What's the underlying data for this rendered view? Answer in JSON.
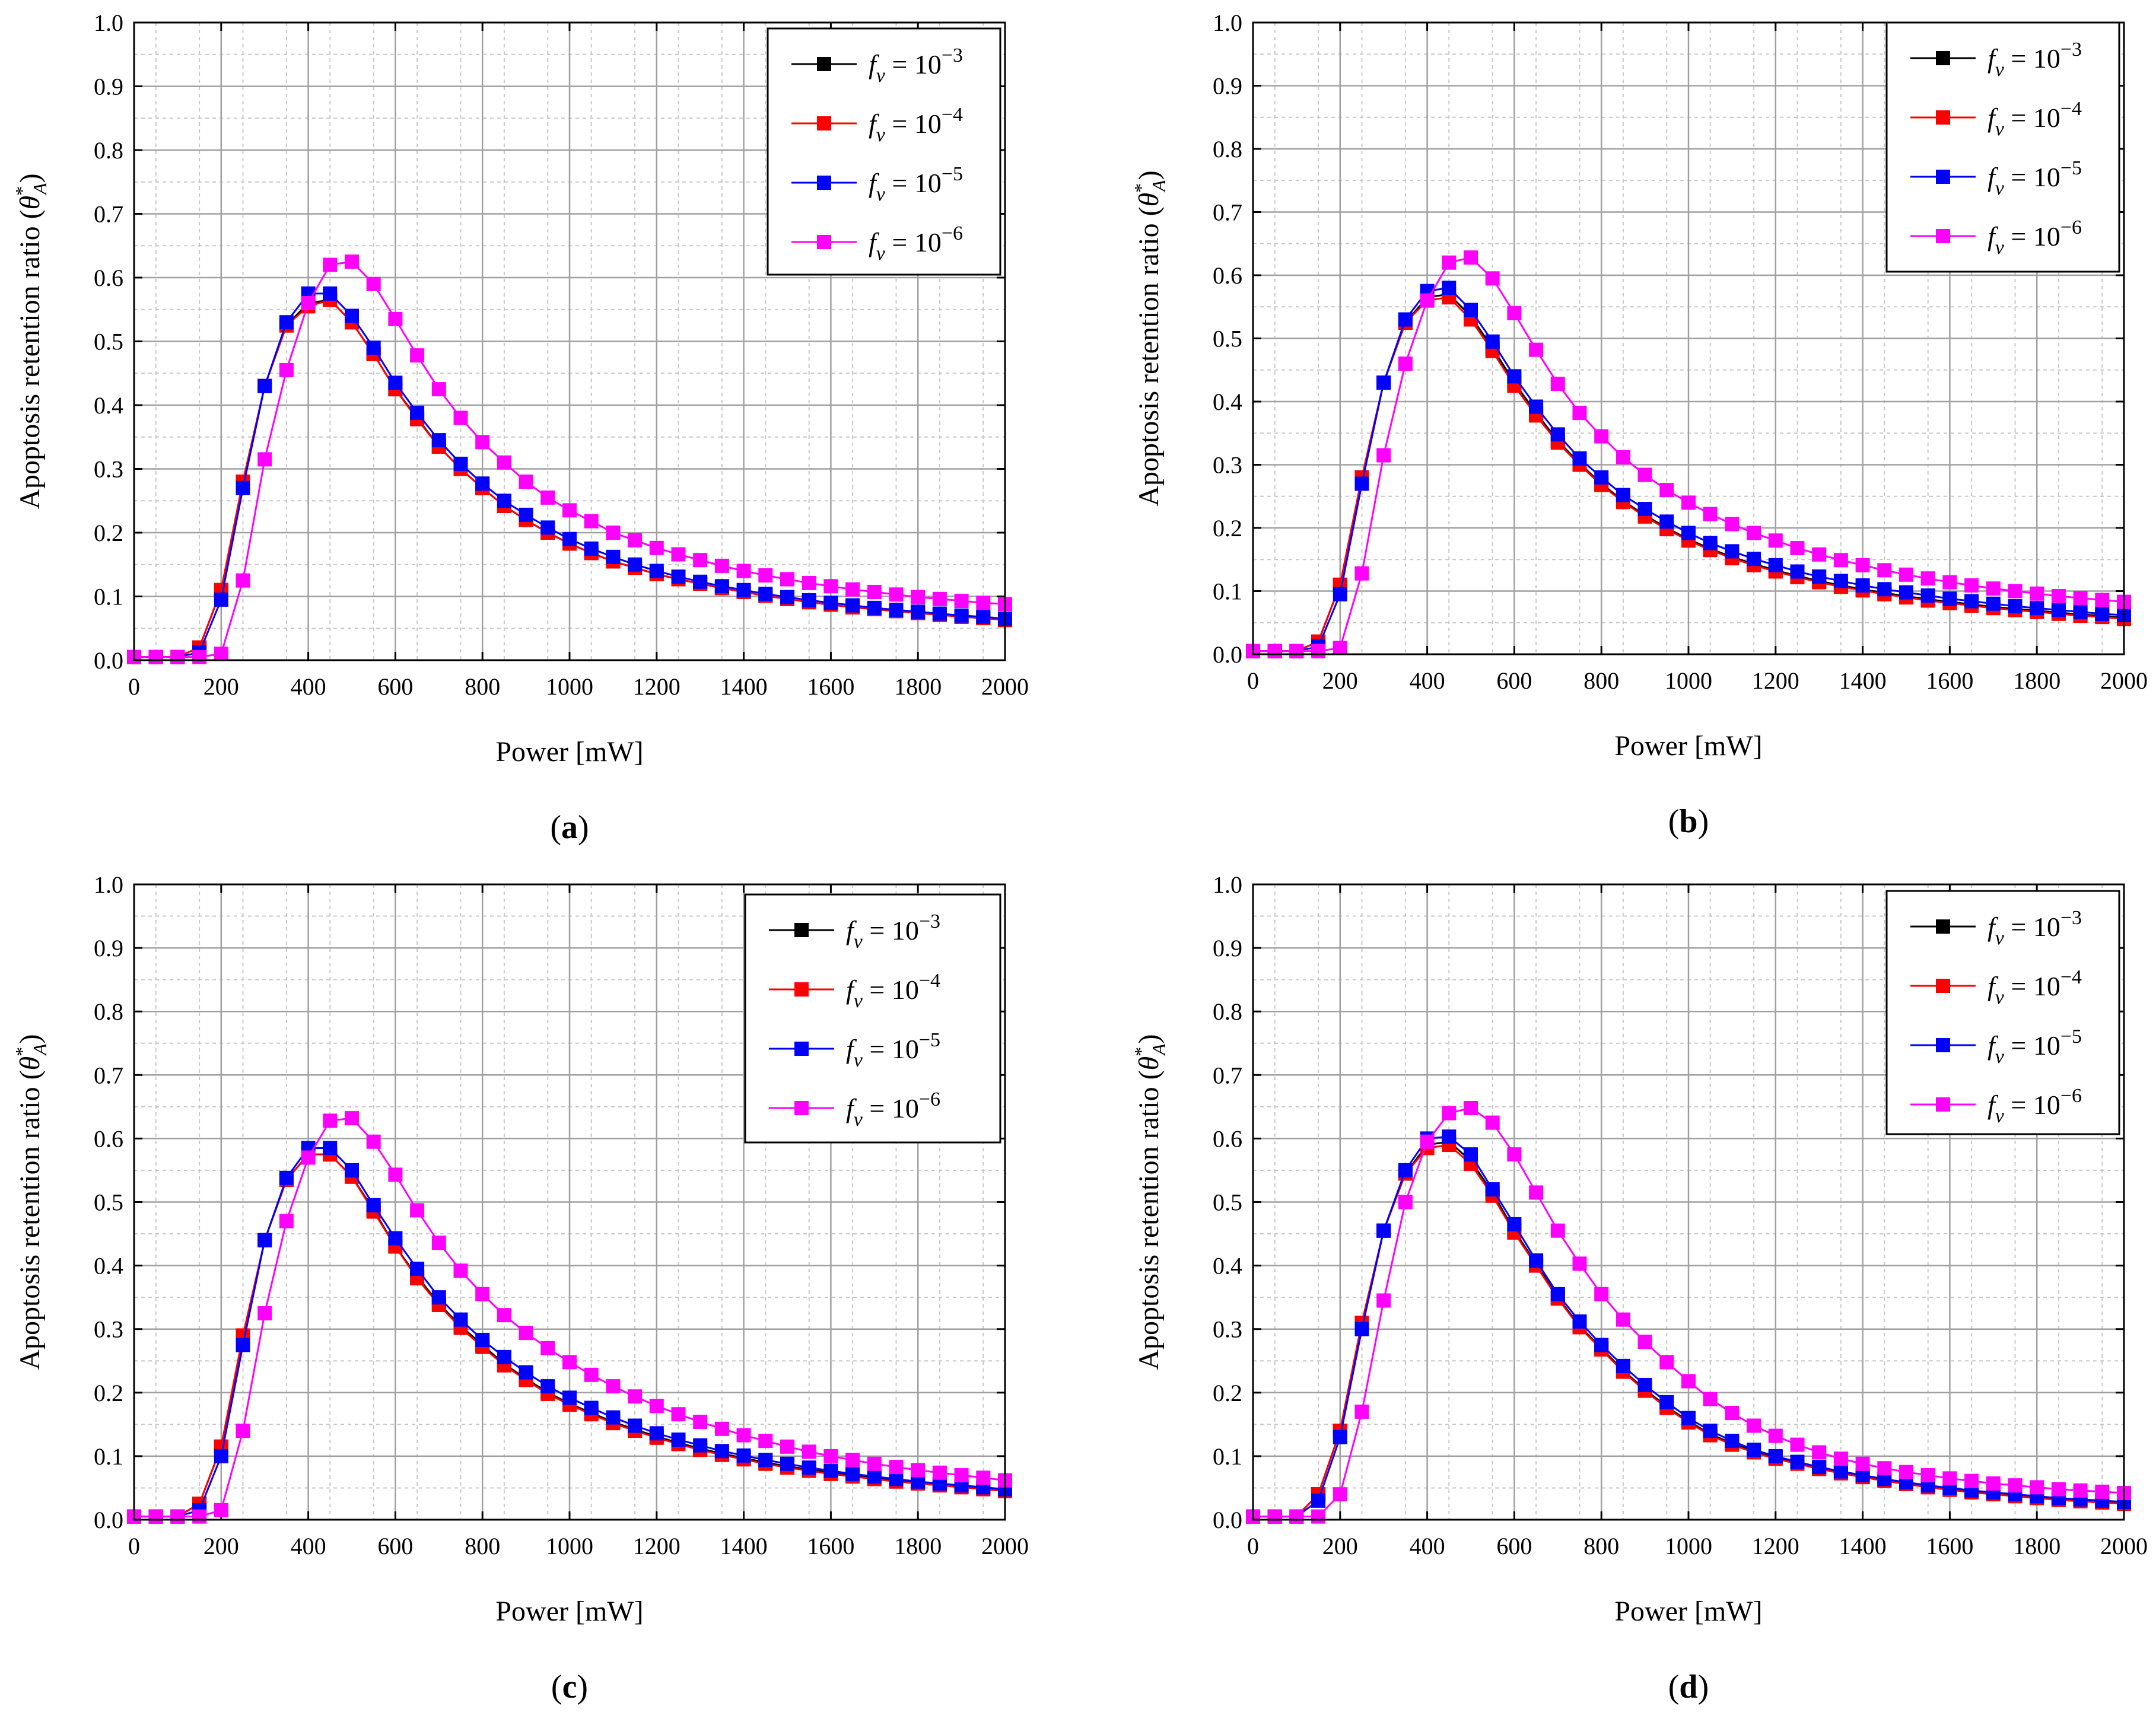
{
  "figure": {
    "colors": {
      "black": "#000000",
      "red": "#ff0000",
      "blue": "#0000ff",
      "magenta": "#ff00ff",
      "grid": "#a0a0a0",
      "minor_grid": "#c8c8c8"
    },
    "legend_labels": [
      {
        "prefix": "f",
        "sub": "v",
        "eq": " = 10",
        "exp": "−3"
      },
      {
        "prefix": "f",
        "sub": "v",
        "eq": " = 10",
        "exp": "−4"
      },
      {
        "prefix": "f",
        "sub": "v",
        "eq": " = 10",
        "exp": "−5"
      },
      {
        "prefix": "f",
        "sub": "v",
        "eq": " = 10",
        "exp": "−6"
      }
    ],
    "xlabel": "Power [mW]",
    "ylabel_main": "Apoptosis retention ratio (",
    "ylabel_symbol": "θ",
    "ylabel_sup": "*",
    "ylabel_sub": "A",
    "ylabel_close": ")"
  },
  "chart_data": [
    {
      "type": "line",
      "caption_letter": "a",
      "xlim": [
        0,
        2000
      ],
      "ylim": [
        0,
        1.0
      ],
      "xticks": [
        "0",
        "200",
        "400",
        "600",
        "800",
        "1000",
        "1200",
        "1400",
        "1600",
        "1800",
        "2000"
      ],
      "yticks": [
        "0.0",
        "0.1",
        "0.2",
        "0.3",
        "0.4",
        "0.5",
        "0.6",
        "0.7",
        "0.8",
        "0.9",
        "1.0"
      ],
      "x": [
        0,
        50,
        100,
        150,
        200,
        250,
        300,
        350,
        400,
        450,
        500,
        550,
        600,
        650,
        700,
        750,
        800,
        850,
        900,
        950,
        1000,
        1050,
        1100,
        1150,
        1200,
        1250,
        1300,
        1350,
        1400,
        1450,
        1500,
        1550,
        1600,
        1650,
        1700,
        1750,
        1800,
        1850,
        1900,
        1950,
        2000
      ],
      "series": [
        {
          "name": "fv = 10^-3",
          "color": "black",
          "values": [
            0.005,
            0.005,
            0.005,
            0.02,
            0.11,
            0.28,
            0.43,
            0.525,
            0.56,
            0.565,
            0.53,
            0.48,
            0.425,
            0.38,
            0.335,
            0.3,
            0.27,
            0.242,
            0.22,
            0.2,
            0.183,
            0.168,
            0.155,
            0.145,
            0.135,
            0.127,
            0.12,
            0.113,
            0.107,
            0.101,
            0.096,
            0.091,
            0.087,
            0.083,
            0.08,
            0.077,
            0.074,
            0.071,
            0.068,
            0.066,
            0.063
          ]
        },
        {
          "name": "fv = 10^-4",
          "color": "red",
          "values": [
            0.005,
            0.005,
            0.005,
            0.02,
            0.11,
            0.28,
            0.43,
            0.525,
            0.555,
            0.565,
            0.53,
            0.48,
            0.425,
            0.378,
            0.335,
            0.3,
            0.27,
            0.242,
            0.22,
            0.2,
            0.183,
            0.168,
            0.155,
            0.145,
            0.135,
            0.127,
            0.12,
            0.113,
            0.107,
            0.101,
            0.096,
            0.091,
            0.087,
            0.083,
            0.08,
            0.077,
            0.074,
            0.071,
            0.068,
            0.066,
            0.063
          ]
        },
        {
          "name": "fv = 10^-5",
          "color": "blue",
          "values": [
            0.005,
            0.005,
            0.005,
            0.012,
            0.095,
            0.27,
            0.43,
            0.53,
            0.575,
            0.575,
            0.54,
            0.49,
            0.435,
            0.388,
            0.345,
            0.308,
            0.277,
            0.25,
            0.228,
            0.208,
            0.19,
            0.175,
            0.162,
            0.15,
            0.14,
            0.131,
            0.123,
            0.116,
            0.11,
            0.104,
            0.099,
            0.094,
            0.09,
            0.086,
            0.082,
            0.079,
            0.076,
            0.073,
            0.07,
            0.068,
            0.065
          ]
        },
        {
          "name": "fv = 10^-6",
          "color": "magenta",
          "values": [
            0.005,
            0.005,
            0.005,
            0.005,
            0.01,
            0.125,
            0.315,
            0.455,
            0.56,
            0.62,
            0.625,
            0.59,
            0.535,
            0.478,
            0.425,
            0.38,
            0.342,
            0.31,
            0.28,
            0.255,
            0.235,
            0.218,
            0.2,
            0.188,
            0.176,
            0.166,
            0.157,
            0.148,
            0.14,
            0.133,
            0.127,
            0.121,
            0.116,
            0.111,
            0.107,
            0.103,
            0.099,
            0.096,
            0.093,
            0.09,
            0.088
          ]
        }
      ]
    },
    {
      "type": "line",
      "caption_letter": "b",
      "xlim": [
        0,
        2000
      ],
      "ylim": [
        0,
        1.0
      ],
      "xticks": [
        "0",
        "200",
        "400",
        "600",
        "800",
        "1000",
        "1200",
        "1400",
        "1600",
        "1800",
        "2000"
      ],
      "yticks": [
        "0.0",
        "0.1",
        "0.2",
        "0.3",
        "0.4",
        "0.5",
        "0.6",
        "0.7",
        "0.8",
        "0.9",
        "1.0"
      ],
      "x": [
        0,
        50,
        100,
        150,
        200,
        250,
        300,
        350,
        400,
        450,
        500,
        550,
        600,
        650,
        700,
        750,
        800,
        850,
        900,
        950,
        1000,
        1050,
        1100,
        1150,
        1200,
        1250,
        1300,
        1350,
        1400,
        1450,
        1500,
        1550,
        1600,
        1650,
        1700,
        1750,
        1800,
        1850,
        1900,
        1950,
        2000
      ],
      "series": [
        {
          "name": "fv = 10^-3",
          "color": "black",
          "values": [
            0.005,
            0.005,
            0.005,
            0.02,
            0.11,
            0.28,
            0.43,
            0.525,
            0.565,
            0.57,
            0.535,
            0.485,
            0.43,
            0.382,
            0.338,
            0.302,
            0.27,
            0.243,
            0.22,
            0.2,
            0.182,
            0.167,
            0.154,
            0.143,
            0.133,
            0.124,
            0.116,
            0.109,
            0.103,
            0.097,
            0.092,
            0.087,
            0.083,
            0.079,
            0.075,
            0.072,
            0.069,
            0.066,
            0.063,
            0.061,
            0.058
          ]
        },
        {
          "name": "fv = 10^-4",
          "color": "red",
          "values": [
            0.005,
            0.005,
            0.005,
            0.02,
            0.11,
            0.28,
            0.43,
            0.525,
            0.56,
            0.565,
            0.53,
            0.48,
            0.425,
            0.378,
            0.335,
            0.3,
            0.268,
            0.241,
            0.218,
            0.198,
            0.18,
            0.165,
            0.152,
            0.141,
            0.131,
            0.122,
            0.114,
            0.107,
            0.101,
            0.095,
            0.09,
            0.085,
            0.081,
            0.077,
            0.073,
            0.07,
            0.067,
            0.064,
            0.061,
            0.059,
            0.056
          ]
        },
        {
          "name": "fv = 10^-5",
          "color": "blue",
          "values": [
            0.005,
            0.005,
            0.005,
            0.012,
            0.095,
            0.27,
            0.43,
            0.53,
            0.575,
            0.58,
            0.545,
            0.495,
            0.44,
            0.392,
            0.348,
            0.31,
            0.28,
            0.252,
            0.23,
            0.21,
            0.192,
            0.176,
            0.163,
            0.151,
            0.141,
            0.131,
            0.123,
            0.116,
            0.109,
            0.103,
            0.098,
            0.093,
            0.088,
            0.084,
            0.08,
            0.076,
            0.073,
            0.07,
            0.067,
            0.064,
            0.062
          ]
        },
        {
          "name": "fv = 10^-6",
          "color": "magenta",
          "values": [
            0.005,
            0.005,
            0.005,
            0.005,
            0.01,
            0.128,
            0.315,
            0.46,
            0.56,
            0.62,
            0.628,
            0.595,
            0.54,
            0.482,
            0.428,
            0.382,
            0.345,
            0.312,
            0.284,
            0.26,
            0.24,
            0.222,
            0.206,
            0.192,
            0.18,
            0.168,
            0.158,
            0.149,
            0.141,
            0.133,
            0.126,
            0.12,
            0.114,
            0.109,
            0.104,
            0.1,
            0.096,
            0.092,
            0.089,
            0.086,
            0.083
          ]
        }
      ]
    },
    {
      "type": "line",
      "caption_letter": "c",
      "xlim": [
        0,
        2000
      ],
      "ylim": [
        0,
        1.0
      ],
      "xticks": [
        "0",
        "200",
        "400",
        "600",
        "800",
        "1000",
        "1200",
        "1400",
        "1600",
        "1800",
        "2000"
      ],
      "yticks": [
        "0.0",
        "0.1",
        "0.2",
        "0.3",
        "0.4",
        "0.5",
        "0.6",
        "0.7",
        "0.8",
        "0.9",
        "1.0"
      ],
      "x": [
        0,
        50,
        100,
        150,
        200,
        250,
        300,
        350,
        400,
        450,
        500,
        550,
        600,
        650,
        700,
        750,
        800,
        850,
        900,
        950,
        1000,
        1050,
        1100,
        1150,
        1200,
        1250,
        1300,
        1350,
        1400,
        1450,
        1500,
        1550,
        1600,
        1650,
        1700,
        1750,
        1800,
        1850,
        1900,
        1950,
        2000
      ],
      "series": [
        {
          "name": "fv = 10^-3",
          "color": "black",
          "values": [
            0.005,
            0.005,
            0.005,
            0.025,
            0.115,
            0.285,
            0.44,
            0.535,
            0.575,
            0.575,
            0.54,
            0.488,
            0.43,
            0.383,
            0.34,
            0.305,
            0.275,
            0.245,
            0.222,
            0.2,
            0.183,
            0.168,
            0.154,
            0.142,
            0.131,
            0.121,
            0.112,
            0.104,
            0.097,
            0.09,
            0.084,
            0.079,
            0.074,
            0.07,
            0.066,
            0.062,
            0.058,
            0.055,
            0.052,
            0.049,
            0.046
          ]
        },
        {
          "name": "fv = 10^-4",
          "color": "red",
          "values": [
            0.005,
            0.005,
            0.005,
            0.025,
            0.115,
            0.29,
            0.44,
            0.535,
            0.575,
            0.575,
            0.54,
            0.485,
            0.43,
            0.38,
            0.338,
            0.302,
            0.272,
            0.243,
            0.22,
            0.198,
            0.181,
            0.166,
            0.152,
            0.14,
            0.129,
            0.119,
            0.11,
            0.102,
            0.095,
            0.088,
            0.082,
            0.077,
            0.072,
            0.068,
            0.064,
            0.06,
            0.057,
            0.054,
            0.051,
            0.048,
            0.045
          ]
        },
        {
          "name": "fv = 10^-5",
          "color": "blue",
          "values": [
            0.005,
            0.005,
            0.005,
            0.015,
            0.1,
            0.275,
            0.44,
            0.538,
            0.585,
            0.585,
            0.55,
            0.495,
            0.443,
            0.395,
            0.35,
            0.315,
            0.283,
            0.256,
            0.232,
            0.21,
            0.192,
            0.176,
            0.161,
            0.148,
            0.136,
            0.126,
            0.117,
            0.108,
            0.101,
            0.094,
            0.088,
            0.082,
            0.077,
            0.072,
            0.068,
            0.064,
            0.06,
            0.057,
            0.054,
            0.051,
            0.048
          ]
        },
        {
          "name": "fv = 10^-6",
          "color": "magenta",
          "values": [
            0.005,
            0.005,
            0.005,
            0.005,
            0.015,
            0.14,
            0.325,
            0.47,
            0.57,
            0.628,
            0.632,
            0.595,
            0.543,
            0.487,
            0.436,
            0.392,
            0.355,
            0.322,
            0.294,
            0.27,
            0.248,
            0.228,
            0.21,
            0.194,
            0.179,
            0.166,
            0.154,
            0.143,
            0.133,
            0.124,
            0.115,
            0.107,
            0.1,
            0.094,
            0.088,
            0.083,
            0.078,
            0.074,
            0.07,
            0.066,
            0.062
          ]
        }
      ]
    },
    {
      "type": "line",
      "caption_letter": "d",
      "xlim": [
        0,
        2000
      ],
      "ylim": [
        0,
        1.0
      ],
      "xticks": [
        "0",
        "200",
        "400",
        "600",
        "800",
        "1000",
        "1200",
        "1400",
        "1600",
        "1800",
        "2000"
      ],
      "yticks": [
        "0.0",
        "0.1",
        "0.2",
        "0.3",
        "0.4",
        "0.5",
        "0.6",
        "0.7",
        "0.8",
        "0.9",
        "1.0"
      ],
      "x": [
        0,
        50,
        100,
        150,
        200,
        250,
        300,
        350,
        400,
        450,
        500,
        550,
        600,
        650,
        700,
        750,
        800,
        850,
        900,
        950,
        1000,
        1050,
        1100,
        1150,
        1200,
        1250,
        1300,
        1350,
        1400,
        1450,
        1500,
        1550,
        1600,
        1650,
        1700,
        1750,
        1800,
        1850,
        1900,
        1950,
        2000
      ],
      "series": [
        {
          "name": "fv = 10^-3",
          "color": "black",
          "values": [
            0.005,
            0.005,
            0.005,
            0.04,
            0.14,
            0.31,
            0.455,
            0.545,
            0.59,
            0.595,
            0.565,
            0.515,
            0.455,
            0.403,
            0.35,
            0.305,
            0.27,
            0.235,
            0.205,
            0.178,
            0.155,
            0.135,
            0.12,
            0.108,
            0.098,
            0.09,
            0.082,
            0.075,
            0.069,
            0.063,
            0.058,
            0.053,
            0.049,
            0.045,
            0.042,
            0.039,
            0.036,
            0.033,
            0.031,
            0.029,
            0.027
          ]
        },
        {
          "name": "fv = 10^-4",
          "color": "red",
          "values": [
            0.005,
            0.005,
            0.005,
            0.04,
            0.14,
            0.31,
            0.455,
            0.545,
            0.585,
            0.59,
            0.56,
            0.51,
            0.452,
            0.4,
            0.348,
            0.303,
            0.268,
            0.233,
            0.203,
            0.176,
            0.153,
            0.133,
            0.118,
            0.106,
            0.096,
            0.088,
            0.08,
            0.073,
            0.067,
            0.061,
            0.056,
            0.051,
            0.047,
            0.043,
            0.04,
            0.037,
            0.034,
            0.031,
            0.029,
            0.027,
            0.025
          ]
        },
        {
          "name": "fv = 10^-5",
          "color": "blue",
          "values": [
            0.005,
            0.005,
            0.005,
            0.03,
            0.13,
            0.3,
            0.455,
            0.55,
            0.6,
            0.603,
            0.575,
            0.52,
            0.465,
            0.408,
            0.355,
            0.312,
            0.275,
            0.242,
            0.212,
            0.185,
            0.16,
            0.14,
            0.124,
            0.11,
            0.1,
            0.091,
            0.083,
            0.076,
            0.07,
            0.064,
            0.059,
            0.054,
            0.05,
            0.046,
            0.043,
            0.04,
            0.037,
            0.034,
            0.032,
            0.03,
            0.028
          ]
        },
        {
          "name": "fv = 10^-6",
          "color": "magenta",
          "values": [
            0.005,
            0.005,
            0.005,
            0.005,
            0.04,
            0.17,
            0.345,
            0.5,
            0.595,
            0.64,
            0.648,
            0.625,
            0.575,
            0.515,
            0.455,
            0.403,
            0.355,
            0.315,
            0.28,
            0.248,
            0.218,
            0.19,
            0.168,
            0.148,
            0.132,
            0.118,
            0.106,
            0.096,
            0.088,
            0.081,
            0.075,
            0.07,
            0.065,
            0.061,
            0.057,
            0.054,
            0.051,
            0.048,
            0.046,
            0.044,
            0.042
          ]
        }
      ]
    }
  ]
}
